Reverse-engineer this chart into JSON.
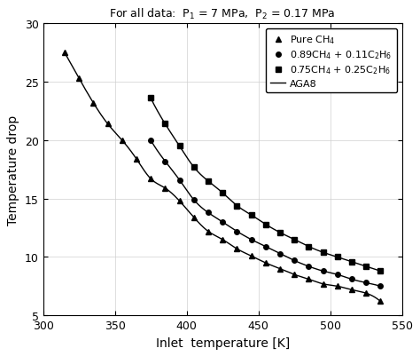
{
  "title": "For all data:  P$_1$ = 7 MPa,  P$_2$ = 0.17 MPa",
  "xlabel": "Inlet  temperature [K]",
  "ylabel": "Temperature drop",
  "xlim": [
    300,
    550
  ],
  "ylim": [
    5,
    30
  ],
  "xticks": [
    300,
    350,
    400,
    450,
    500,
    550
  ],
  "yticks": [
    5,
    10,
    15,
    20,
    25,
    30
  ],
  "ch4_x": [
    315,
    325,
    335,
    345,
    355,
    365,
    375,
    385,
    395,
    405,
    415,
    425,
    435,
    445,
    455,
    465,
    475,
    485,
    495,
    505,
    515,
    525,
    535
  ],
  "ch4_y": [
    27.5,
    25.3,
    23.2,
    21.4,
    20.0,
    18.4,
    16.7,
    15.9,
    14.8,
    13.4,
    12.2,
    11.5,
    10.7,
    10.1,
    9.5,
    9.0,
    8.5,
    8.1,
    7.7,
    7.5,
    7.2,
    6.9,
    6.2
  ],
  "mix1_x": [
    375,
    385,
    395,
    405,
    415,
    425,
    435,
    445,
    455,
    465,
    475,
    485,
    495,
    505,
    515,
    525,
    535
  ],
  "mix1_y": [
    20.0,
    18.2,
    16.6,
    14.9,
    13.8,
    13.0,
    12.2,
    11.5,
    10.9,
    10.3,
    9.7,
    9.2,
    8.8,
    8.5,
    8.1,
    7.8,
    7.5
  ],
  "mix2_x": [
    375,
    385,
    395,
    405,
    415,
    425,
    435,
    445,
    455,
    465,
    475,
    485,
    495,
    505,
    515,
    525,
    535
  ],
  "mix2_y": [
    23.6,
    21.4,
    19.5,
    17.7,
    16.5,
    15.5,
    14.4,
    13.6,
    12.8,
    12.1,
    11.5,
    10.9,
    10.4,
    10.0,
    9.6,
    9.2,
    8.8
  ],
  "legend_labels": [
    "Pure CH$_4$",
    "0.89CH$_4$ + 0.11C$_2$H$_6$",
    "0.75CH$_4$ + 0.25C$_2$H$_6$",
    "AGA8"
  ],
  "background_color": "#ffffff",
  "marker_size": 4,
  "line_width": 1.0,
  "title_fontsize": 9,
  "axis_fontsize": 10,
  "tick_fontsize": 9,
  "legend_fontsize": 8
}
